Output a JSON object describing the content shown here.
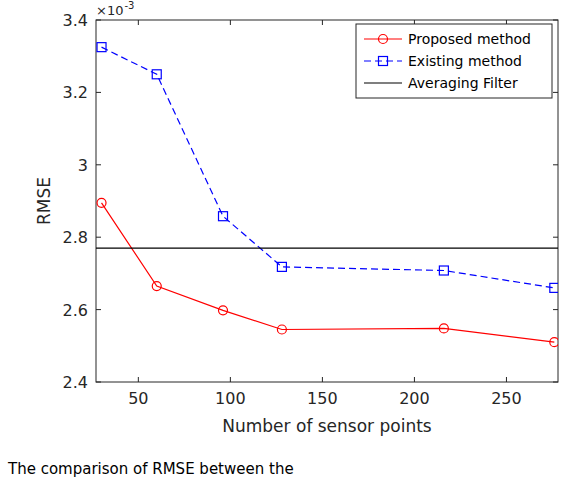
{
  "chart_data": {
    "type": "line",
    "x_label": "Number of sensor points",
    "y_label": "RMSE",
    "annotations": [
      {
        "text": "×10",
        "sup": "-3"
      }
    ],
    "caption": "The comparison of RMSE between the",
    "x": [
      30,
      60,
      96,
      128,
      216,
      276
    ],
    "xlim": [
      27,
      278
    ],
    "xticks": [
      50,
      100,
      150,
      200,
      250
    ],
    "ylim": [
      2.4,
      3.4
    ],
    "yticks": [
      2.4,
      2.6,
      2.8,
      3,
      3.2,
      3.4
    ],
    "grid": false,
    "legend": "top-right",
    "series": [
      {
        "name": "Proposed method",
        "color": "#ff0000",
        "marker": "circle",
        "line_style": "solid",
        "values": [
          2.895,
          2.665,
          2.598,
          2.545,
          2.548,
          2.51
        ]
      },
      {
        "name": "Existing method",
        "color": "#0000ff",
        "marker": "square",
        "line_style": "dashed",
        "values": [
          3.325,
          3.25,
          2.858,
          2.718,
          2.708,
          2.66
        ]
      },
      {
        "name": "Averaging Filter",
        "color": "#000000",
        "marker": "none",
        "line_style": "solid",
        "type": "hline",
        "value": 2.77
      }
    ]
  }
}
